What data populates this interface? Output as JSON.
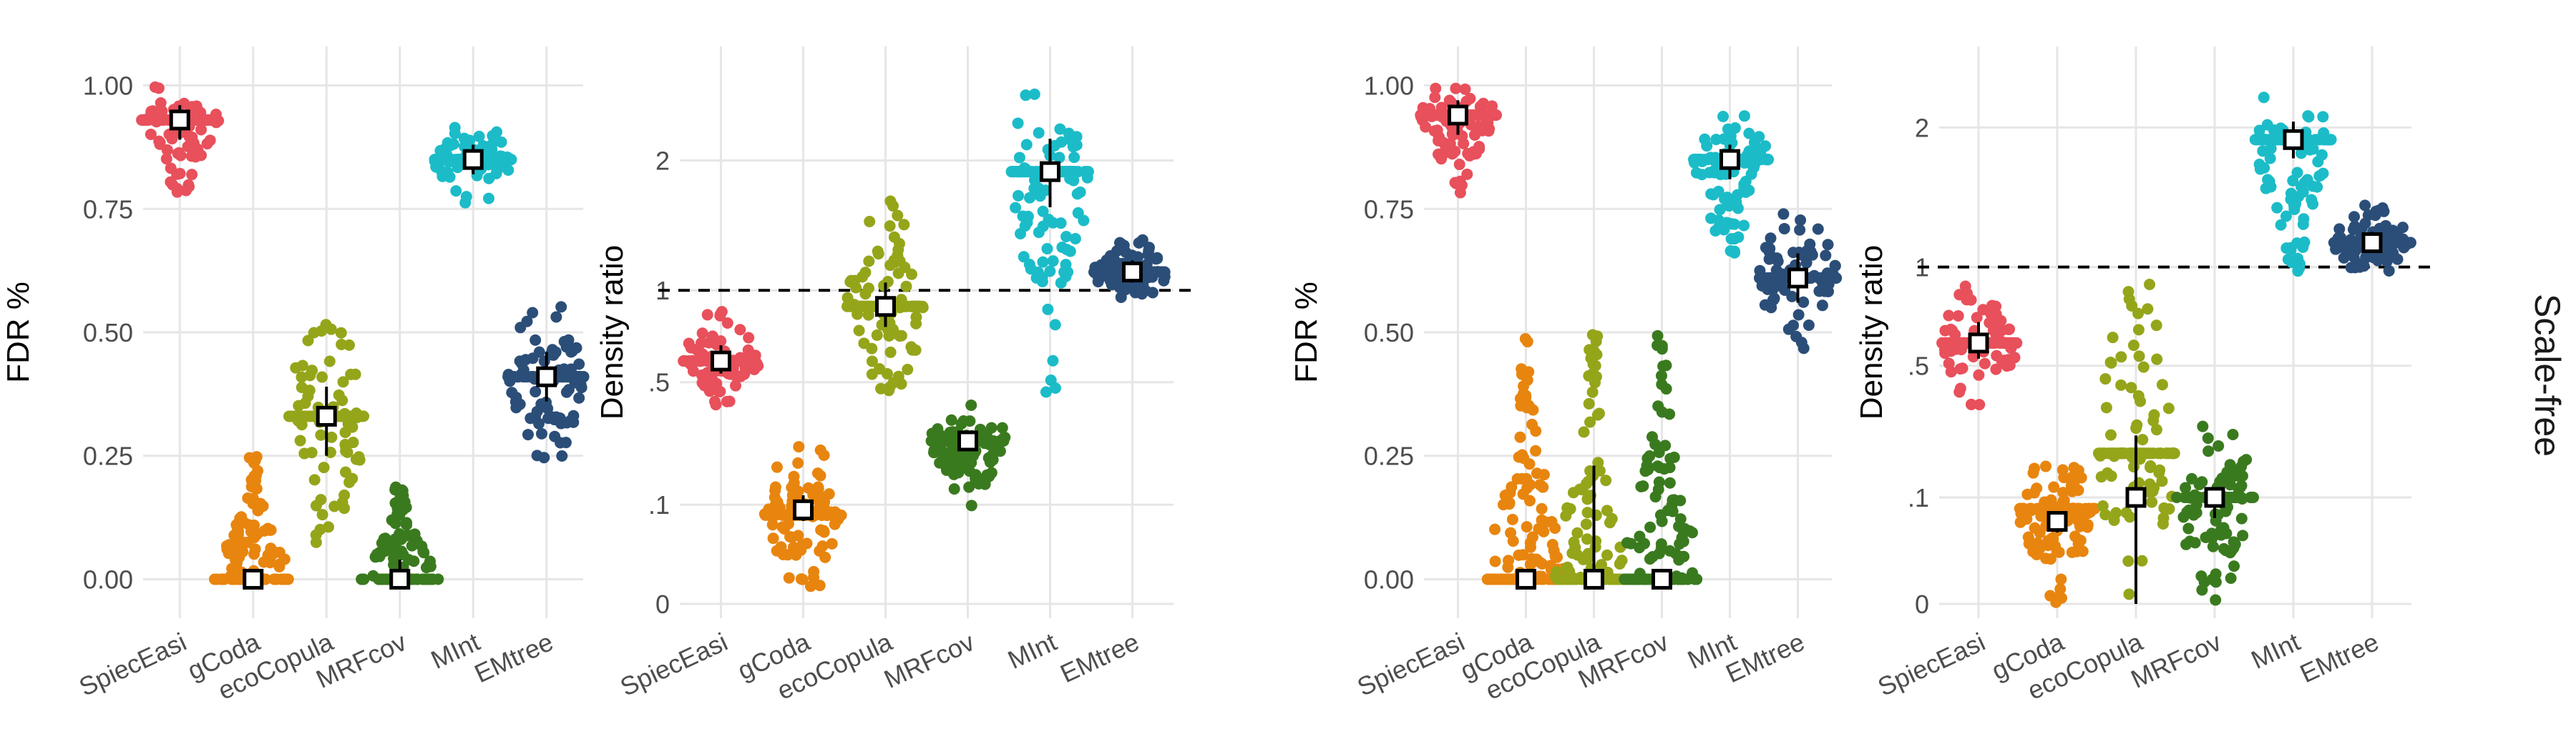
{
  "strip_label": "Scale-free",
  "colors": {
    "SpiecEasi": "#e8505b",
    "gCoda": "#e8850f",
    "ecoCopula": "#95a51a",
    "MRFcov": "#3a7a1f",
    "MInt": "#1bbcc8",
    "EMtree": "#2b4e78",
    "grid": "#e6e6e6",
    "text": "#4d4d4d"
  },
  "chart_data": [
    {
      "type": "scatter",
      "subtype": "beeswarm",
      "xlabel": "",
      "ylabel": "FDR %",
      "categories": [
        "SpiecEasi",
        "gCoda",
        "ecoCopula",
        "MRFcov",
        "MInt",
        "EMtree"
      ],
      "y_ticks": [
        0,
        0.25,
        0.5,
        0.75,
        1
      ],
      "y_tick_labels": [
        "0.00",
        "0.25",
        "0.50",
        "0.75",
        "1.00"
      ],
      "ylim": [
        -0.05,
        1.05
      ],
      "scale": "linear",
      "grid": true,
      "summary": [
        {
          "category": "SpiecEasi",
          "median": 0.93,
          "lower": 0.89,
          "upper": 0.96
        },
        {
          "category": "gCoda",
          "median": 0.0,
          "lower": 0.0,
          "upper": 0.0
        },
        {
          "category": "ecoCopula",
          "median": 0.33,
          "lower": 0.25,
          "upper": 0.39
        },
        {
          "category": "MRFcov",
          "median": 0.0,
          "lower": 0.0,
          "upper": 0.04
        },
        {
          "category": "MInt",
          "median": 0.85,
          "lower": 0.82,
          "upper": 0.88
        },
        {
          "category": "EMtree",
          "median": 0.41,
          "lower": 0.36,
          "upper": 0.46
        }
      ],
      "distributions": [
        {
          "category": "SpiecEasi",
          "min": 0.78,
          "max": 1.0,
          "mode": 0.93
        },
        {
          "category": "gCoda",
          "min": 0.0,
          "max": 0.25,
          "mode": 0.0
        },
        {
          "category": "ecoCopula",
          "min": 0.06,
          "max": 0.55,
          "mode": 0.33
        },
        {
          "category": "MRFcov",
          "min": 0.0,
          "max": 0.2,
          "mode": 0.0
        },
        {
          "category": "MInt",
          "min": 0.76,
          "max": 0.93,
          "mode": 0.85
        },
        {
          "category": "EMtree",
          "min": 0.22,
          "max": 0.56,
          "mode": 0.41
        }
      ]
    },
    {
      "type": "scatter",
      "subtype": "beeswarm",
      "xlabel": "",
      "ylabel": "Density ratio",
      "categories": [
        "SpiecEasi",
        "gCoda",
        "ecoCopula",
        "MRFcov",
        "MInt",
        "EMtree"
      ],
      "y_ticks": [
        0,
        0.1,
        0.5,
        1,
        2
      ],
      "y_tick_labels": [
        "0",
        ".1",
        ".5",
        "1",
        "2"
      ],
      "ylim": [
        0,
        3
      ],
      "scale": "sqrt-log",
      "grid": true,
      "reference_line": 1,
      "summary": [
        {
          "category": "SpiecEasi",
          "median": 0.6,
          "lower": 0.54,
          "upper": 0.68
        },
        {
          "category": "gCoda",
          "median": 0.09,
          "lower": 0.07,
          "upper": 0.12
        },
        {
          "category": "ecoCopula",
          "median": 0.9,
          "lower": 0.78,
          "upper": 1.05
        },
        {
          "category": "MRFcov",
          "median": 0.27,
          "lower": 0.24,
          "upper": 0.3
        },
        {
          "category": "MInt",
          "median": 1.9,
          "lower": 1.6,
          "upper": 2.2
        },
        {
          "category": "EMtree",
          "median": 1.12,
          "lower": 1.05,
          "upper": 1.2
        }
      ],
      "distributions": [
        {
          "category": "SpiecEasi",
          "min": 0.4,
          "max": 0.88,
          "mode": 0.6
        },
        {
          "category": "gCoda",
          "min": 0.0,
          "max": 0.26,
          "mode": 0.08
        },
        {
          "category": "ecoCopula",
          "min": 0.45,
          "max": 1.7,
          "mode": 0.9
        },
        {
          "category": "MRFcov",
          "min": 0.095,
          "max": 0.42,
          "mode": 0.27
        },
        {
          "category": "MInt",
          "min": 0.45,
          "max": 2.7,
          "mode": 1.9
        },
        {
          "category": "EMtree",
          "min": 0.95,
          "max": 1.35,
          "mode": 1.12
        }
      ]
    },
    {
      "type": "scatter",
      "subtype": "beeswarm",
      "xlabel": "",
      "ylabel": "FDR %",
      "categories": [
        "SpiecEasi",
        "gCoda",
        "ecoCopula",
        "MRFcov",
        "MInt",
        "EMtree"
      ],
      "y_ticks": [
        0,
        0.25,
        0.5,
        0.75,
        1
      ],
      "y_tick_labels": [
        "0.00",
        "0.25",
        "0.50",
        "0.75",
        "1.00"
      ],
      "ylim": [
        -0.05,
        1.05
      ],
      "scale": "linear",
      "grid": true,
      "summary": [
        {
          "category": "SpiecEasi",
          "median": 0.94,
          "lower": 0.9,
          "upper": 0.97
        },
        {
          "category": "gCoda",
          "median": 0.0,
          "lower": 0.0,
          "upper": 0.0
        },
        {
          "category": "ecoCopula",
          "median": 0.0,
          "lower": 0.0,
          "upper": 0.23
        },
        {
          "category": "MRFcov",
          "median": 0.0,
          "lower": 0.0,
          "upper": 0.0
        },
        {
          "category": "MInt",
          "median": 0.85,
          "lower": 0.81,
          "upper": 0.88
        },
        {
          "category": "EMtree",
          "median": 0.61,
          "lower": 0.56,
          "upper": 0.66
        }
      ],
      "distributions": [
        {
          "category": "SpiecEasi",
          "min": 0.78,
          "max": 1.0,
          "mode": 0.94
        },
        {
          "category": "gCoda",
          "min": 0.0,
          "max": 0.5,
          "mode": 0.0
        },
        {
          "category": "ecoCopula",
          "min": 0.0,
          "max": 0.5,
          "mode": 0.0
        },
        {
          "category": "MRFcov",
          "min": 0.0,
          "max": 0.5,
          "mode": 0.0
        },
        {
          "category": "MInt",
          "min": 0.66,
          "max": 0.95,
          "mode": 0.85
        },
        {
          "category": "EMtree",
          "min": 0.46,
          "max": 0.76,
          "mode": 0.61
        }
      ]
    },
    {
      "type": "scatter",
      "subtype": "beeswarm",
      "xlabel": "",
      "ylabel": "Density ratio",
      "categories": [
        "SpiecEasi",
        "gCoda",
        "ecoCopula",
        "MRFcov",
        "MInt",
        "EMtree"
      ],
      "y_ticks": [
        0,
        0.1,
        0.5,
        1,
        2
      ],
      "y_tick_labels": [
        "0",
        ".1",
        ".5",
        "1",
        "2"
      ],
      "ylim": [
        0,
        2.6
      ],
      "scale": "sqrt-log",
      "grid": true,
      "reference_line": 1,
      "summary": [
        {
          "category": "SpiecEasi",
          "median": 0.6,
          "lower": 0.53,
          "upper": 0.7
        },
        {
          "category": "gCoda",
          "median": 0.06,
          "lower": 0.045,
          "upper": 0.075
        },
        {
          "category": "ecoCopula",
          "median": 0.1,
          "lower": 0.0,
          "upper": 0.25
        },
        {
          "category": "MRFcov",
          "median": 0.1,
          "lower": 0.065,
          "upper": 0.12
        },
        {
          "category": "MInt",
          "median": 1.9,
          "lower": 1.75,
          "upper": 2.05
        },
        {
          "category": "EMtree",
          "median": 1.15,
          "lower": 1.1,
          "upper": 1.22
        }
      ],
      "distributions": [
        {
          "category": "SpiecEasi",
          "min": 0.35,
          "max": 0.9,
          "mode": 0.6
        },
        {
          "category": "gCoda",
          "min": 0.0,
          "max": 0.17,
          "mode": 0.08
        },
        {
          "category": "ecoCopula",
          "min": 0.0,
          "max": 1.0,
          "mode": 0.2
        },
        {
          "category": "MRFcov",
          "min": 0.0,
          "max": 0.28,
          "mode": 0.1
        },
        {
          "category": "MInt",
          "min": 0.95,
          "max": 2.3,
          "mode": 1.9
        },
        {
          "category": "EMtree",
          "min": 0.95,
          "max": 1.4,
          "mode": 1.15
        }
      ]
    }
  ]
}
